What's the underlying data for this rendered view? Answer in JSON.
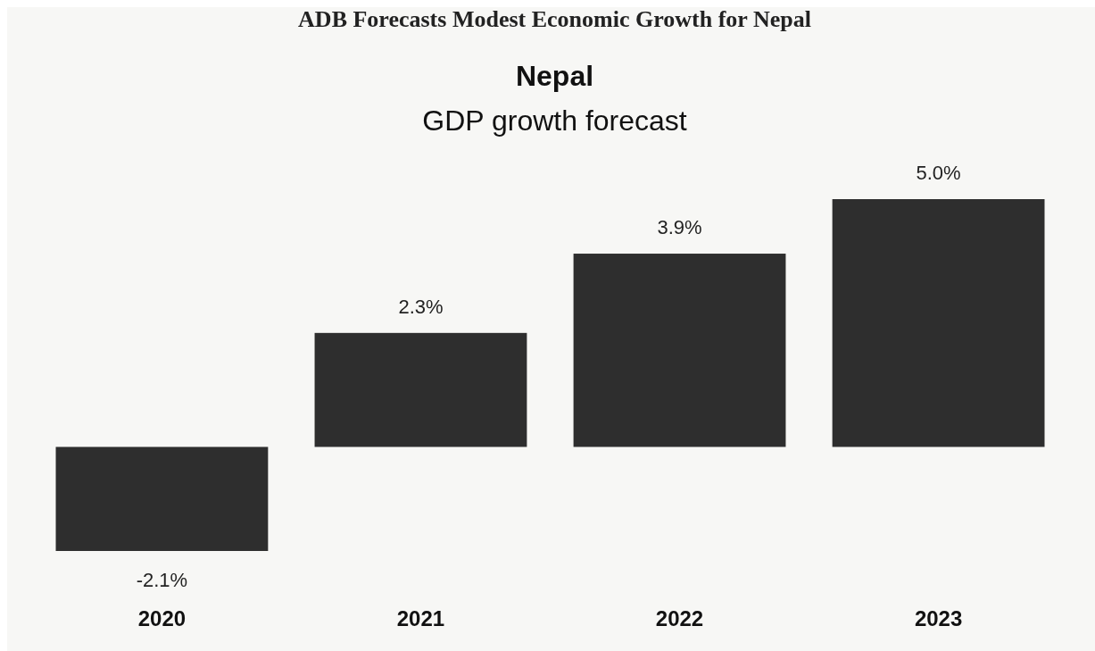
{
  "chart_data": {
    "type": "bar",
    "title": "Nepal",
    "subtitle": "GDP growth forecast",
    "annotations": [
      "ADB Forecasts Modest Economic Growth for Nepal"
    ],
    "categories": [
      "2020",
      "2021",
      "2022",
      "2023"
    ],
    "values": [
      -2.1,
      2.3,
      3.9,
      5.0
    ],
    "value_labels": [
      "-2.1%",
      "2.3%",
      "3.9%",
      "5.0%"
    ],
    "color": "#2e2e2e"
  }
}
